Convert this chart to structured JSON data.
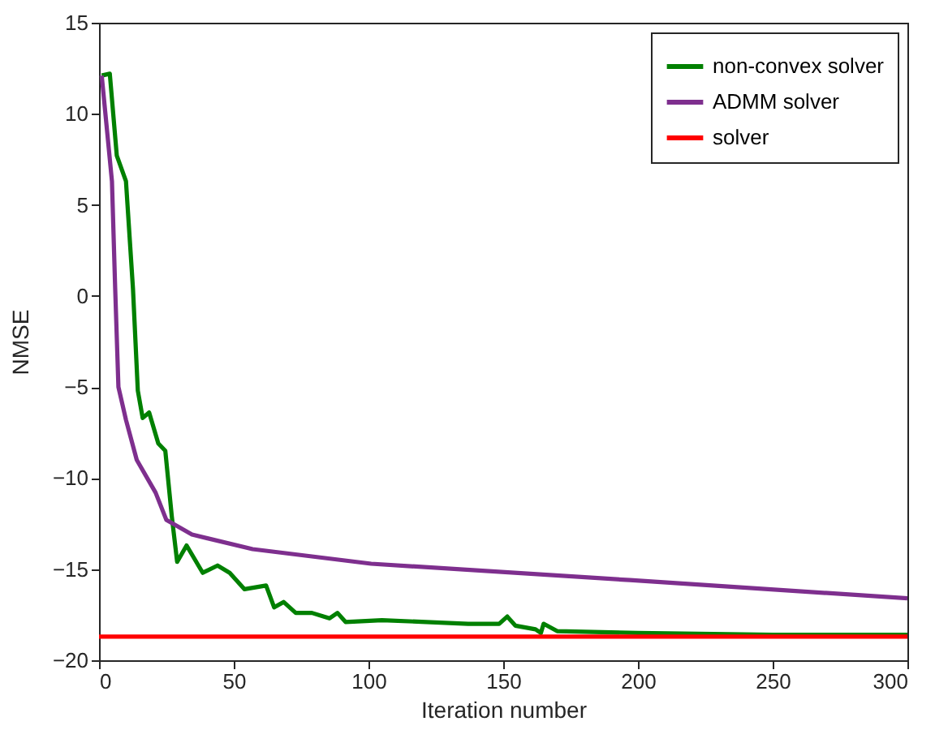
{
  "chart_data": {
    "type": "line",
    "xlabel": "Iteration number",
    "ylabel": "NMSE",
    "xlim": [
      0,
      300
    ],
    "xticks": [
      0,
      50,
      100,
      150,
      200,
      250,
      300
    ],
    "ylim": [
      -20,
      15
    ],
    "yticks": [
      -20,
      -15,
      -10,
      -5,
      0,
      5,
      10,
      15
    ],
    "grid": false,
    "legend": "top right",
    "line_style": "solid",
    "marker": "none",
    "series": [
      {
        "name": "non-convex solver",
        "color": "#008000",
        "x": [
          1,
          4,
          6.6,
          10,
          12.6,
          14.4,
          16.2,
          18.6,
          22,
          24.6,
          27,
          29,
          32.5,
          38.5,
          44,
          48.5,
          54,
          62,
          65,
          68.5,
          73,
          79,
          85.5,
          88.5,
          91.5,
          105,
          137,
          148.5,
          151.5,
          154.5,
          162,
          164,
          165,
          170,
          200,
          250,
          300
        ],
        "values": [
          12.1,
          12.2,
          7.7,
          6.3,
          0.4,
          -5.2,
          -6.7,
          -6.4,
          -8.1,
          -8.5,
          -12.1,
          -14.6,
          -13.7,
          -15.2,
          -14.8,
          -15.2,
          -16.1,
          -15.9,
          -17.1,
          -16.8,
          -17.4,
          -17.4,
          -17.7,
          -17.4,
          -17.9,
          -17.8,
          -18,
          -18,
          -17.6,
          -18.1,
          -18.3,
          -18.5,
          -18,
          -18.4,
          -18.5,
          -18.6,
          -18.6
        ]
      },
      {
        "name": "ADMM solver",
        "color": "#7e2f8e",
        "x": [
          1,
          4.8,
          6,
          7.2,
          10,
          14,
          21,
          25,
          34.5,
          57,
          101,
          197,
          300
        ],
        "values": [
          12.1,
          6.3,
          0.4,
          -5,
          -6.8,
          -9,
          -10.8,
          -12.3,
          -13.1,
          -13.9,
          -14.7,
          -15.6,
          -16.6
        ]
      },
      {
        "name": "solver",
        "color": "#ff0000",
        "x": [
          0,
          300
        ],
        "values": [
          -18.7,
          -18.7
        ]
      }
    ]
  }
}
